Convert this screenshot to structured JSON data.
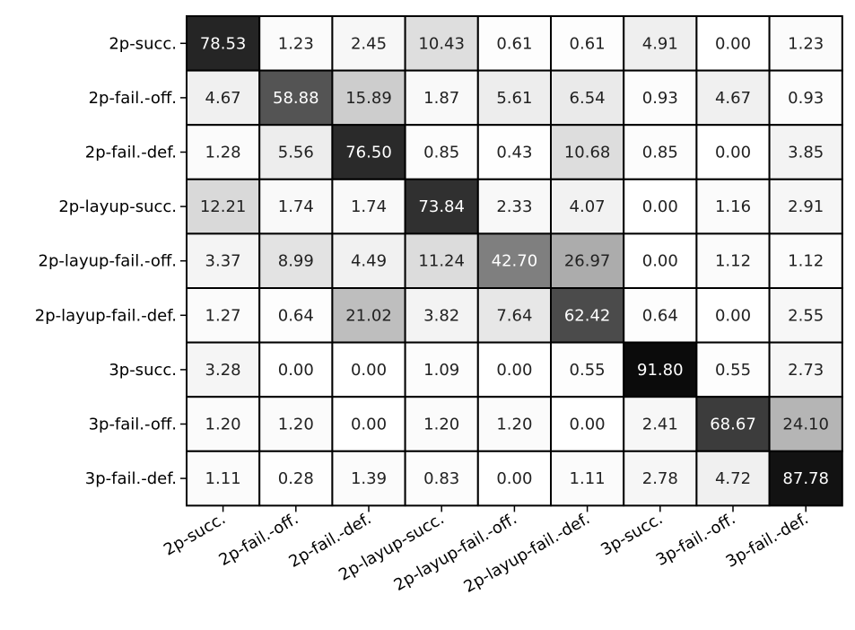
{
  "chart_data": {
    "type": "heatmap",
    "title": "",
    "xlabel": "",
    "ylabel": "",
    "row_labels": [
      "2p-succ.",
      "2p-fail.-off.",
      "2p-fail.-def.",
      "2p-layup-succ.",
      "2p-layup-fail.-off.",
      "2p-layup-fail.-def.",
      "3p-succ.",
      "3p-fail.-off.",
      "3p-fail.-def."
    ],
    "col_labels": [
      "2p-succ.",
      "2p-fail.-off.",
      "2p-fail.-def.",
      "2p-layup-succ.",
      "2p-layup-fail.-off.",
      "2p-layup-fail.-def.",
      "3p-succ.",
      "3p-fail.-off.",
      "3p-fail.-def."
    ],
    "values": [
      [
        "78.53",
        "1.23",
        "2.45",
        "10.43",
        "0.61",
        "0.61",
        "4.91",
        "0.00",
        "1.23"
      ],
      [
        "4.67",
        "58.88",
        "15.89",
        "1.87",
        "5.61",
        "6.54",
        "0.93",
        "4.67",
        "0.93"
      ],
      [
        "1.28",
        "5.56",
        "76.50",
        "0.85",
        "0.43",
        "10.68",
        "0.85",
        "0.00",
        "3.85"
      ],
      [
        "12.21",
        "1.74",
        "1.74",
        "73.84",
        "2.33",
        "4.07",
        "0.00",
        "1.16",
        "2.91"
      ],
      [
        "3.37",
        "8.99",
        "4.49",
        "11.24",
        "42.70",
        "26.97",
        "0.00",
        "1.12",
        "1.12"
      ],
      [
        "1.27",
        "0.64",
        "21.02",
        "3.82",
        "7.64",
        "62.42",
        "0.64",
        "0.00",
        "2.55"
      ],
      [
        "3.28",
        "0.00",
        "0.00",
        "1.09",
        "0.00",
        "0.55",
        "91.80",
        "0.55",
        "2.73"
      ],
      [
        "1.20",
        "1.20",
        "0.00",
        "1.20",
        "1.20",
        "0.00",
        "2.41",
        "68.67",
        "24.10"
      ],
      [
        "1.11",
        "0.28",
        "1.39",
        "0.83",
        "0.00",
        "1.11",
        "2.78",
        "4.72",
        "87.78"
      ]
    ],
    "colormap": "greys",
    "value_range": [
      0,
      100
    ],
    "grid": true
  }
}
